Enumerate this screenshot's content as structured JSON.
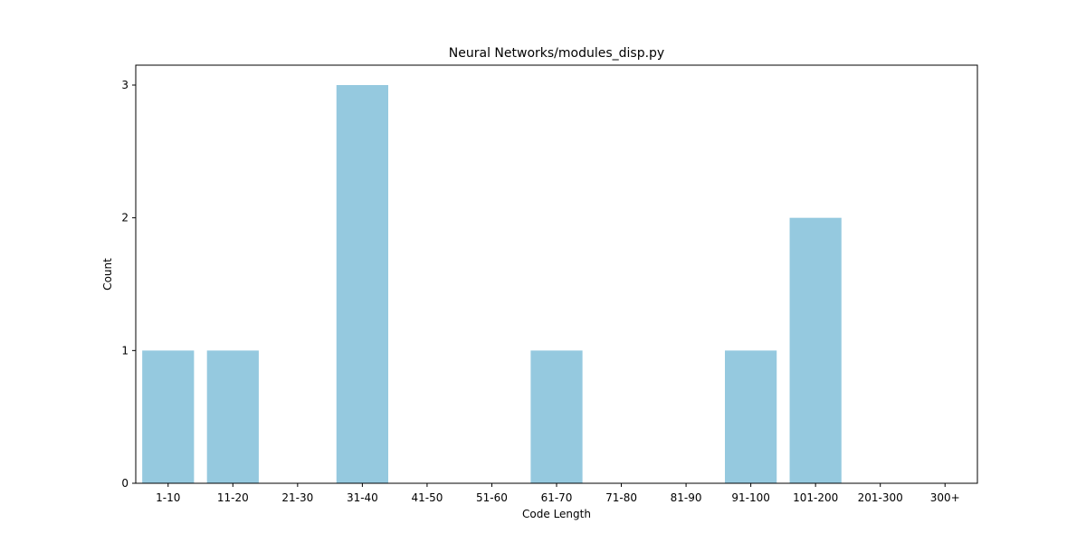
{
  "chart_data": {
    "type": "bar",
    "title": "Neural Networks/modules_disp.py",
    "xlabel": "Code Length",
    "ylabel": "Count",
    "categories": [
      "1-10",
      "11-20",
      "21-30",
      "31-40",
      "41-50",
      "51-60",
      "61-70",
      "71-80",
      "81-90",
      "91-100",
      "101-200",
      "201-300",
      "300+"
    ],
    "values": [
      1,
      1,
      0,
      3,
      0,
      0,
      1,
      0,
      0,
      1,
      2,
      0,
      0
    ],
    "yticks": [
      "0",
      "1",
      "2",
      "3"
    ],
    "ylim": [
      0,
      3.15
    ],
    "bar_color": "#95c9df",
    "grid": false,
    "legend": "none"
  }
}
